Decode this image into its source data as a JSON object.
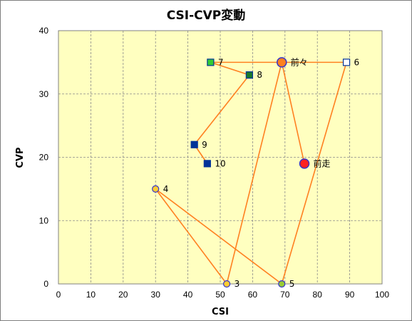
{
  "chart_data": {
    "type": "scatter",
    "title": "CSI-CVP変動",
    "xlabel": "CSI",
    "ylabel": "CVP",
    "xlim": [
      0,
      100
    ],
    "ylim": [
      0,
      40
    ],
    "xticks": [
      0,
      10,
      20,
      30,
      40,
      50,
      60,
      70,
      80,
      90,
      100
    ],
    "yticks": [
      0,
      10,
      20,
      30,
      40
    ],
    "grid": true,
    "legend": "none",
    "line_color": "#ff8020",
    "plot_background": "#ffffc0",
    "path_order": [
      "10",
      "9",
      "8",
      "7",
      "6",
      "5",
      "4",
      "3",
      "前々",
      "前走"
    ],
    "points": [
      {
        "label": "10",
        "x": 46,
        "y": 19,
        "marker": "square",
        "fill": "#003399",
        "stroke": "#003399"
      },
      {
        "label": "9",
        "x": 42,
        "y": 22,
        "marker": "square",
        "fill": "#003399",
        "stroke": "#003399"
      },
      {
        "label": "8",
        "x": 59,
        "y": 33,
        "marker": "square",
        "fill": "#1a7a2a",
        "stroke": "#003399"
      },
      {
        "label": "7",
        "x": 47,
        "y": 35,
        "marker": "square",
        "fill": "#33cc33",
        "stroke": "#003399"
      },
      {
        "label": "6",
        "x": 89,
        "y": 35,
        "marker": "square",
        "fill": "#ffffff",
        "stroke": "#003399"
      },
      {
        "label": "5",
        "x": 69,
        "y": 0,
        "marker": "circle",
        "fill": "#99cc33",
        "stroke": "#3333cc"
      },
      {
        "label": "4",
        "x": 30,
        "y": 15,
        "marker": "circle",
        "fill": "#ffcc33",
        "stroke": "#3333cc"
      },
      {
        "label": "3",
        "x": 52,
        "y": 0,
        "marker": "circle",
        "fill": "#ffcc33",
        "stroke": "#3333cc"
      },
      {
        "label": "前々",
        "x": 69,
        "y": 35,
        "marker": "circle-large",
        "fill": "#ff8020",
        "stroke": "#3333cc"
      },
      {
        "label": "前走",
        "x": 76,
        "y": 19,
        "marker": "circle-large",
        "fill": "#ff2020",
        "stroke": "#3333cc"
      }
    ]
  }
}
